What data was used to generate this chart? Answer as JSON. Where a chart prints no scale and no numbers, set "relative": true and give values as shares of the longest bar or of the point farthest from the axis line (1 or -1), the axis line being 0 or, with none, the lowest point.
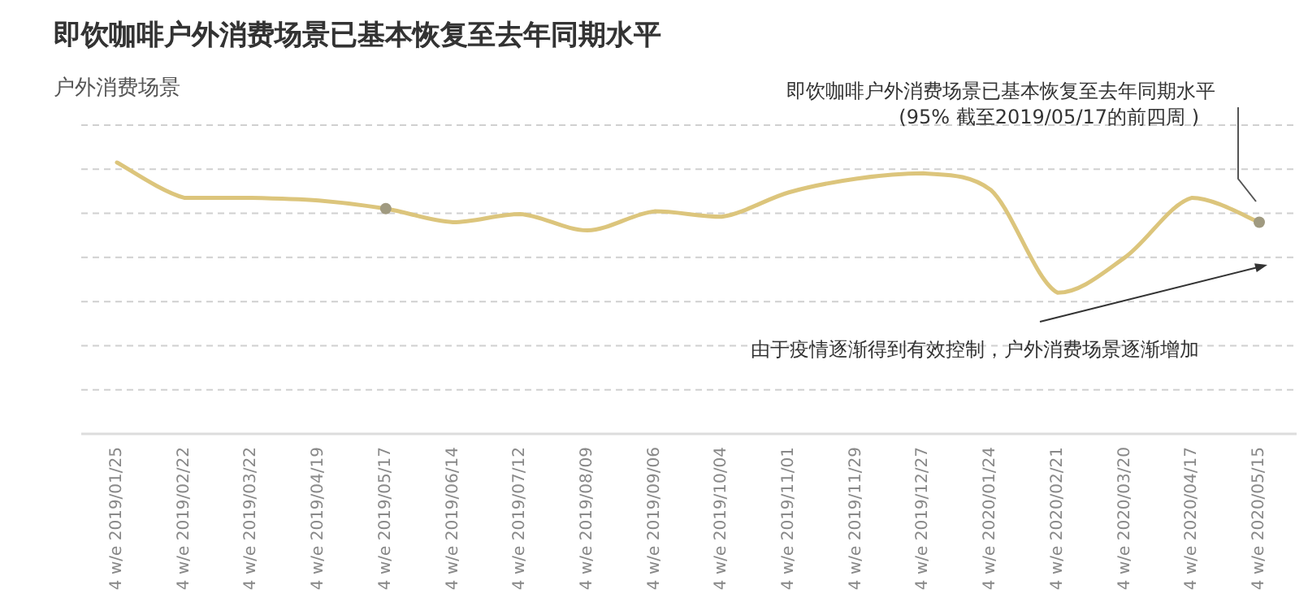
{
  "chart_data": {
    "type": "line",
    "title": "即饮咖啡户外消费场景已基本恢复至去年同期水平",
    "subtitle": "户外消费场景",
    "relative": true,
    "grid": "y",
    "categories": [
      "4 w/e 2019/01/25",
      "4 w/e 2019/02/22",
      "4 w/e 2019/03/22",
      "4 w/e 2019/04/19",
      "4 w/e 2019/05/17",
      "4 w/e 2019/06/14",
      "4 w/e 2019/07/12",
      "4 w/e 2019/08/09",
      "4 w/e 2019/09/06",
      "4 w/e 2019/10/04",
      "4 w/e 2019/11/01",
      "4 w/e 2019/11/29",
      "4 w/e 2019/12/27",
      "4 w/e 2020/01/24",
      "4 w/e 2020/02/21",
      "4 w/e 2020/03/20",
      "4 w/e 2020/04/17",
      "4 w/e 2020/05/15"
    ],
    "series": [
      {
        "color": "#dcc57c",
        "values": [
          1.0,
          0.87,
          0.87,
          0.86,
          0.83,
          0.78,
          0.81,
          0.75,
          0.82,
          0.8,
          0.89,
          0.94,
          0.96,
          0.9,
          0.52,
          0.65,
          0.87,
          0.78
        ]
      },
      {
        "type": "scatter",
        "color": "#a09a80",
        "marker": "circle",
        "x": [
          "4 w/e 2019/05/17",
          "4 w/e 2020/05/15"
        ],
        "values": [
          0.83,
          0.78
        ]
      }
    ],
    "annotations": [
      "即饮咖啡户外消费场景已基本恢复至去年同期水平\n(95% 截至2019/05/17的前四周 )",
      "由于疫情逐渐得到有效控制，户外消费场景逐渐增加"
    ]
  }
}
